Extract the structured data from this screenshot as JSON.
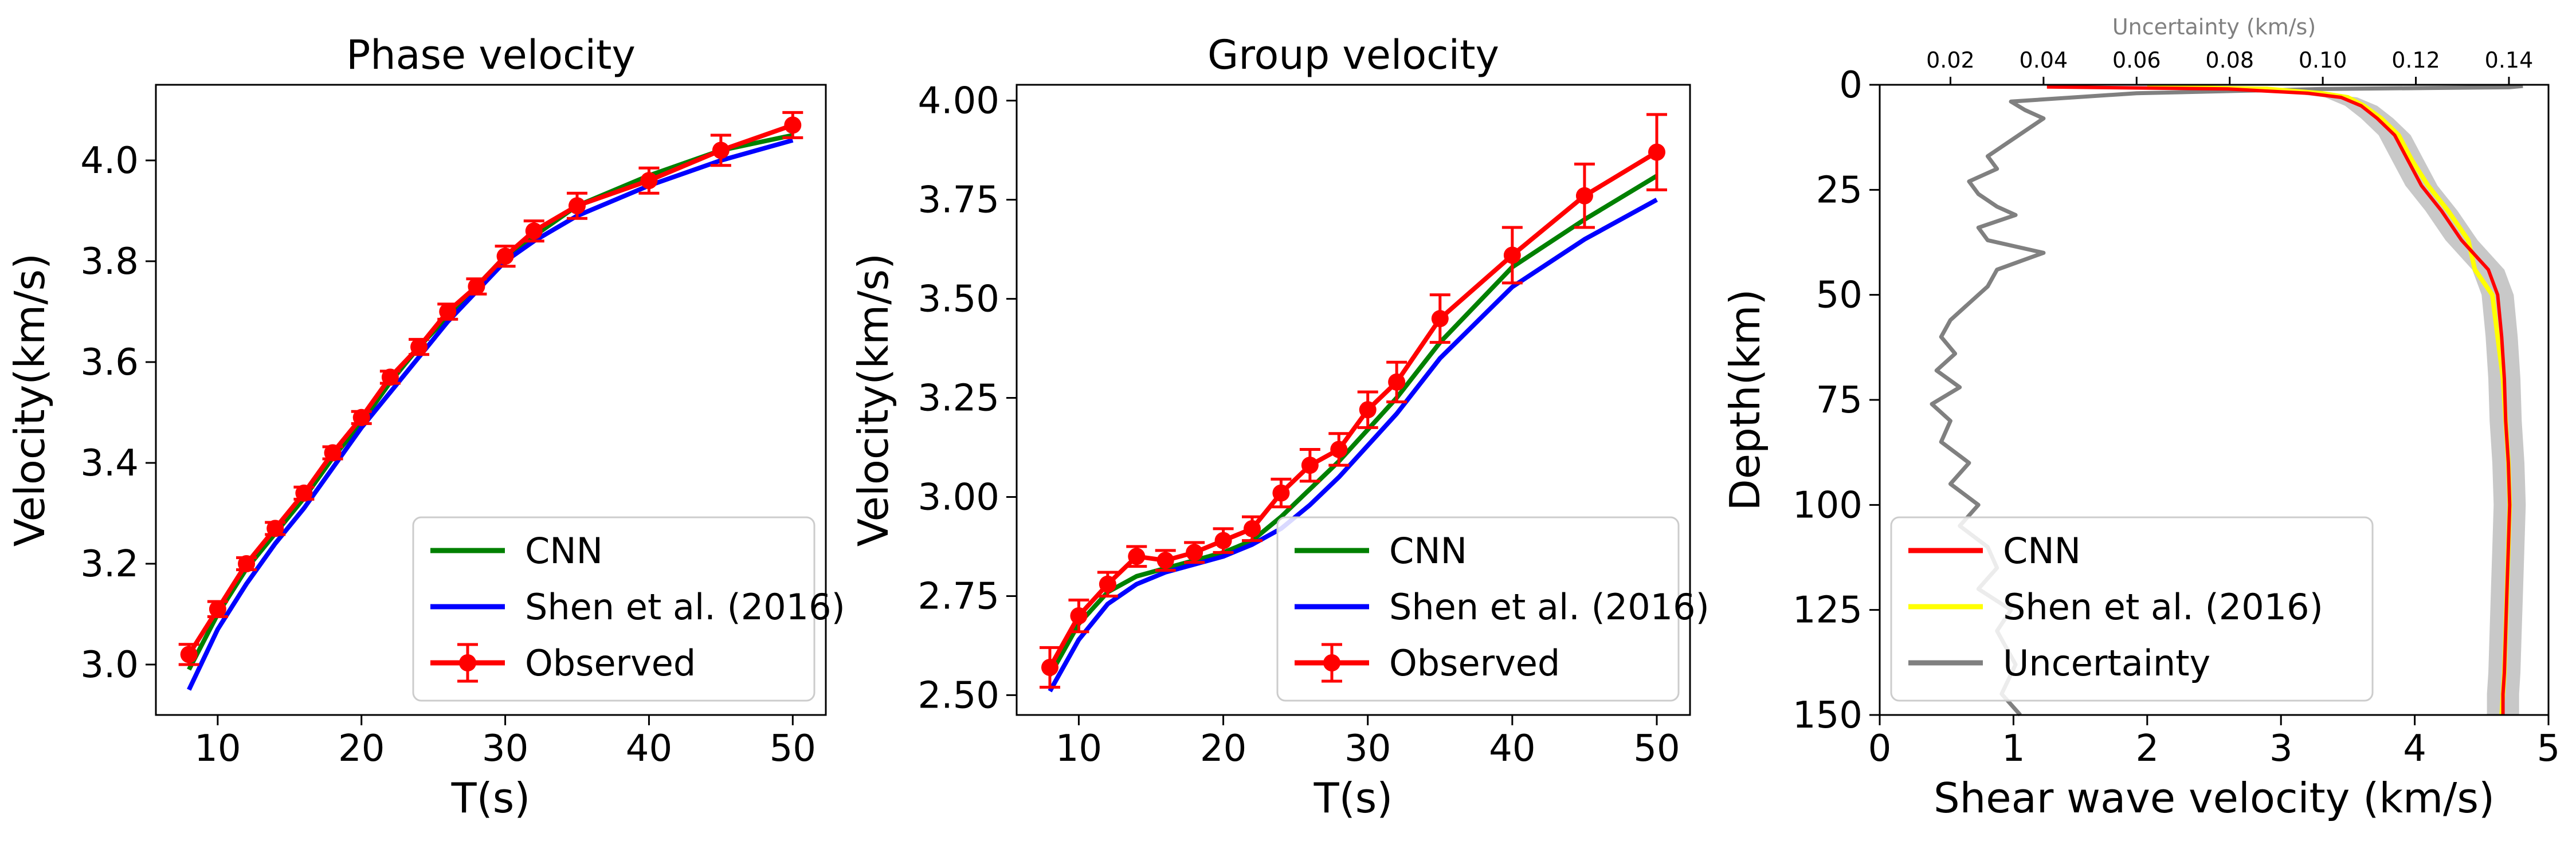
{
  "chart_data": [
    {
      "type": "line",
      "title": "Phase velocity",
      "xlabel": "T(s)",
      "ylabel": "Velocity(km/s)",
      "xlim": [
        5.7,
        52.3
      ],
      "ylim": [
        2.9,
        4.15
      ],
      "xticks": [
        "10",
        "20",
        "30",
        "40",
        "50"
      ],
      "yticks": [
        "3.0",
        "3.2",
        "3.4",
        "3.6",
        "3.8",
        "4.0"
      ],
      "legend_position": "lower-right",
      "series": [
        {
          "name": "CNN",
          "color": "#008000",
          "x": [
            8,
            10,
            12,
            14,
            16,
            18,
            20,
            22,
            24,
            26,
            28,
            30,
            32,
            35,
            40,
            45,
            50
          ],
          "y": [
            2.99,
            3.1,
            3.19,
            3.26,
            3.33,
            3.41,
            3.48,
            3.56,
            3.63,
            3.69,
            3.75,
            3.81,
            3.85,
            3.91,
            3.97,
            4.02,
            4.05
          ]
        },
        {
          "name": "Shen et al. (2016)",
          "color": "#0000ff",
          "x": [
            8,
            10,
            12,
            14,
            16,
            18,
            20,
            22,
            24,
            26,
            28,
            30,
            32,
            35,
            40,
            45,
            50
          ],
          "y": [
            2.95,
            3.07,
            3.16,
            3.24,
            3.31,
            3.39,
            3.47,
            3.54,
            3.61,
            3.68,
            3.74,
            3.8,
            3.84,
            3.89,
            3.95,
            4.0,
            4.04
          ]
        },
        {
          "name": "Observed",
          "color": "#ff0000",
          "errorbars": true,
          "x": [
            8,
            10,
            12,
            14,
            16,
            18,
            20,
            22,
            24,
            26,
            28,
            30,
            32,
            35,
            40,
            45,
            50
          ],
          "y": [
            3.02,
            3.11,
            3.2,
            3.27,
            3.34,
            3.42,
            3.49,
            3.57,
            3.63,
            3.7,
            3.75,
            3.81,
            3.86,
            3.91,
            3.96,
            4.02,
            4.07
          ],
          "err": [
            0.02,
            0.015,
            0.012,
            0.012,
            0.012,
            0.012,
            0.012,
            0.012,
            0.015,
            0.015,
            0.015,
            0.02,
            0.02,
            0.025,
            0.025,
            0.03,
            0.025
          ]
        }
      ]
    },
    {
      "type": "line",
      "title": "Group velocity",
      "xlabel": "T(s)",
      "ylabel": "Velocity(km/s)",
      "xlim": [
        5.7,
        52.3
      ],
      "ylim": [
        2.45,
        4.04
      ],
      "xticks": [
        "10",
        "20",
        "30",
        "40",
        "50"
      ],
      "yticks": [
        "2.50",
        "2.75",
        "3.00",
        "3.25",
        "3.50",
        "3.75",
        "4.00"
      ],
      "legend_position": "lower-right",
      "series": [
        {
          "name": "CNN",
          "color": "#008000",
          "x": [
            8,
            10,
            12,
            14,
            16,
            18,
            20,
            22,
            24,
            26,
            28,
            30,
            32,
            35,
            40,
            45,
            50
          ],
          "y": [
            2.55,
            2.68,
            2.76,
            2.8,
            2.82,
            2.84,
            2.86,
            2.89,
            2.95,
            3.02,
            3.09,
            3.17,
            3.25,
            3.39,
            3.58,
            3.7,
            3.81
          ]
        },
        {
          "name": "Shen et al. (2016)",
          "color": "#0000ff",
          "x": [
            8,
            10,
            12,
            14,
            16,
            18,
            20,
            22,
            24,
            26,
            28,
            30,
            32,
            35,
            40,
            45,
            50
          ],
          "y": [
            2.51,
            2.64,
            2.73,
            2.78,
            2.81,
            2.83,
            2.85,
            2.88,
            2.92,
            2.98,
            3.05,
            3.13,
            3.21,
            3.35,
            3.53,
            3.65,
            3.75
          ]
        },
        {
          "name": "Observed",
          "color": "#ff0000",
          "errorbars": true,
          "x": [
            8,
            10,
            12,
            14,
            16,
            18,
            20,
            22,
            24,
            26,
            28,
            30,
            32,
            35,
            40,
            45,
            50
          ],
          "y": [
            2.57,
            2.7,
            2.78,
            2.85,
            2.84,
            2.86,
            2.89,
            2.92,
            3.01,
            3.08,
            3.12,
            3.22,
            3.29,
            3.45,
            3.61,
            3.76,
            3.87
          ],
          "err": [
            0.05,
            0.04,
            0.03,
            0.025,
            0.025,
            0.025,
            0.03,
            0.03,
            0.035,
            0.04,
            0.04,
            0.045,
            0.05,
            0.06,
            0.07,
            0.08,
            0.095
          ]
        }
      ]
    },
    {
      "type": "line",
      "xlabel": "Shear wave velocity (km/s)",
      "ylabel": "Depth(km)",
      "top_xlabel": "Uncertainty (km/s)",
      "xlim": [
        0,
        5
      ],
      "ylim": [
        150,
        0
      ],
      "top_xlim": [
        0.0048,
        0.1485
      ],
      "xticks": [
        "0",
        "1",
        "2",
        "3",
        "4",
        "5"
      ],
      "yticks": [
        "0",
        "25",
        "50",
        "75",
        "100",
        "125",
        "150"
      ],
      "top_xticks": [
        "0.02",
        "0.04",
        "0.06",
        "0.08",
        "0.10",
        "0.12",
        "0.14"
      ],
      "legend_position": "lower-left",
      "series": [
        {
          "name": "CNN",
          "color": "#ff0000",
          "band_color": "#c8c8c8",
          "vs": [
            1.25,
            2.6,
            3.2,
            3.45,
            3.6,
            3.72,
            3.85,
            3.95,
            4.05,
            4.2,
            4.35,
            4.55,
            4.62,
            4.65,
            4.67,
            4.68,
            4.7,
            4.71,
            4.7,
            4.69,
            4.68,
            4.67,
            4.66,
            4.66
          ],
          "depth": [
            0.5,
            1,
            2,
            3,
            5,
            8,
            12,
            18,
            24,
            30,
            37,
            44,
            50,
            60,
            70,
            80,
            90,
            100,
            110,
            120,
            130,
            140,
            145,
            150
          ]
        },
        {
          "name": "Shen et al. (2016)",
          "color": "#ffff00",
          "vs": [
            2.0,
            2.9,
            3.3,
            3.5,
            3.62,
            3.75,
            3.88,
            3.98,
            4.1,
            4.25,
            4.4,
            4.45,
            4.58,
            4.62,
            4.66,
            4.68,
            4.7,
            4.71,
            4.7,
            4.69,
            4.68,
            4.67,
            4.66,
            4.65
          ],
          "depth": [
            0.5,
            1,
            2,
            3,
            5,
            8,
            12,
            18,
            24,
            30,
            37,
            44,
            50,
            60,
            70,
            80,
            90,
            100,
            110,
            120,
            130,
            140,
            145,
            150
          ]
        },
        {
          "name": "Uncertainty",
          "color": "#808080",
          "unc": [
            0.143,
            0.14,
            0.1,
            0.06,
            0.033,
            0.036,
            0.04,
            0.036,
            0.032,
            0.028,
            0.03,
            0.024,
            0.026,
            0.03,
            0.034,
            0.026,
            0.028,
            0.04,
            0.03,
            0.028,
            0.024,
            0.02,
            0.018,
            0.021,
            0.017,
            0.022,
            0.016,
            0.02,
            0.018,
            0.024,
            0.02,
            0.026,
            0.022,
            0.028,
            0.03,
            0.026,
            0.033,
            0.03,
            0.034,
            0.031,
            0.035
          ],
          "depth": [
            0.3,
            0.6,
            1,
            2,
            4,
            6,
            8,
            11,
            14,
            17,
            20,
            23,
            26,
            29,
            31,
            34,
            37,
            40,
            44,
            48,
            52,
            56,
            60,
            64,
            68,
            72,
            76,
            80,
            85,
            90,
            95,
            100,
            105,
            110,
            115,
            120,
            125,
            130,
            138,
            145,
            150
          ]
        }
      ]
    }
  ]
}
